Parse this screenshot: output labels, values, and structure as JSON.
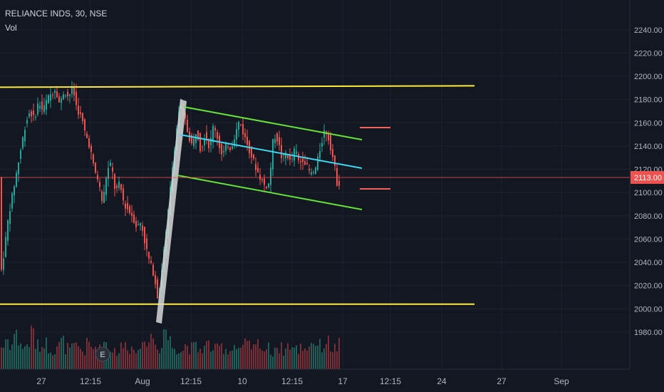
{
  "header": {
    "symbol_line": "RELIANCE INDS, 30, NSE",
    "volume_label": "Vol"
  },
  "colors": {
    "background": "#131722",
    "grid": "#1e222d",
    "axis_text": "#b2b5be",
    "candle_up": "#26a69a",
    "candle_down": "#ef5350",
    "vol_up": "#1e5f5a",
    "vol_down": "#7a2e35",
    "support_resistance": "#ffeb3b",
    "channel": "#66e33a",
    "midline": "#3fd6f0",
    "pole": "#d8d8d8",
    "target_marks": "#f0625a",
    "price_line": "#ef5350"
  },
  "chart_data": {
    "type": "candlestick",
    "symbol": "RELIANCE INDS",
    "interval": "30",
    "exchange": "NSE",
    "y_axis": {
      "range": [
        1964,
        2246
      ],
      "ticks": [
        1980,
        2000,
        2020,
        2040,
        2060,
        2080,
        2100,
        2120,
        2140,
        2160,
        2180,
        2200,
        2220,
        2240
      ],
      "tick_labels": [
        "1980.00",
        "2000.00",
        "2020.00",
        "2040.00",
        "2060.00",
        "2080.00",
        "2100.00",
        "2120.00",
        "2140.00",
        "2160.00",
        "2180.00",
        "2200.00",
        "2220.00",
        "2240.00"
      ]
    },
    "x_axis": {
      "tick_labels": [
        "27",
        "12:15",
        "Aug",
        "12:15",
        "10",
        "12:15",
        "17",
        "12:15",
        "24",
        "27",
        "Sep"
      ]
    },
    "last_price": 2113.0,
    "last_price_label": "2113.00",
    "grid": true,
    "price_path": [
      [
        0,
        2025
      ],
      [
        6,
        2050
      ],
      [
        12,
        2080
      ],
      [
        18,
        2100
      ],
      [
        24,
        2120
      ],
      [
        30,
        2140
      ],
      [
        36,
        2160
      ],
      [
        42,
        2170
      ],
      [
        48,
        2163
      ],
      [
        54,
        2178
      ],
      [
        60,
        2170
      ],
      [
        66,
        2180
      ],
      [
        72,
        2185
      ],
      [
        78,
        2190
      ],
      [
        84,
        2175
      ],
      [
        90,
        2188
      ],
      [
        96,
        2182
      ],
      [
        102,
        2190
      ],
      [
        108,
        2172
      ],
      [
        114,
        2165
      ],
      [
        120,
        2150
      ],
      [
        126,
        2140
      ],
      [
        132,
        2120
      ],
      [
        138,
        2110
      ],
      [
        144,
        2090
      ],
      [
        150,
        2118
      ],
      [
        156,
        2125
      ],
      [
        162,
        2100
      ],
      [
        168,
        2108
      ],
      [
        174,
        2090
      ],
      [
        180,
        2085
      ],
      [
        186,
        2080
      ],
      [
        192,
        2070
      ],
      [
        198,
        2075
      ],
      [
        204,
        2055
      ],
      [
        210,
        2040
      ],
      [
        216,
        2030
      ],
      [
        222,
        2008
      ],
      [
        228,
        2040
      ],
      [
        234,
        2070
      ],
      [
        240,
        2110
      ],
      [
        246,
        2145
      ],
      [
        252,
        2175
      ],
      [
        258,
        2168
      ],
      [
        264,
        2150
      ],
      [
        270,
        2140
      ],
      [
        276,
        2155
      ],
      [
        282,
        2135
      ],
      [
        288,
        2152
      ],
      [
        294,
        2138
      ],
      [
        300,
        2160
      ],
      [
        306,
        2145
      ],
      [
        312,
        2130
      ],
      [
        318,
        2142
      ],
      [
        324,
        2138
      ],
      [
        330,
        2150
      ],
      [
        336,
        2162
      ],
      [
        342,
        2150
      ],
      [
        348,
        2140
      ],
      [
        354,
        2130
      ],
      [
        360,
        2120
      ],
      [
        366,
        2112
      ],
      [
        372,
        2105
      ],
      [
        378,
        2108
      ],
      [
        384,
        2150
      ],
      [
        390,
        2145
      ],
      [
        396,
        2128
      ],
      [
        402,
        2135
      ],
      [
        408,
        2125
      ],
      [
        414,
        2138
      ],
      [
        420,
        2125
      ],
      [
        426,
        2130
      ],
      [
        432,
        2120
      ],
      [
        438,
        2115
      ],
      [
        444,
        2122
      ],
      [
        450,
        2140
      ],
      [
        456,
        2155
      ],
      [
        462,
        2145
      ],
      [
        468,
        2128
      ],
      [
        474,
        2105
      ],
      [
        479,
        2113
      ]
    ],
    "volume_profile": [
      0.35,
      0.6,
      0.4,
      0.8,
      0.5,
      0.3,
      0.45,
      0.9,
      0.4,
      0.35,
      0.5,
      0.3,
      0.25,
      0.4,
      0.55,
      0.3,
      0.25,
      0.35,
      0.3,
      0.2,
      0.45,
      0.3,
      0.35,
      0.25,
      0.5,
      0.3,
      0.25,
      0.2,
      0.35,
      0.4,
      0.3,
      0.25,
      0.45,
      0.3,
      0.55,
      0.7,
      0.4,
      0.3,
      0.95,
      0.6,
      0.35,
      0.3,
      0.25,
      0.4,
      0.3,
      0.35,
      0.25,
      0.3,
      0.45,
      0.3,
      0.25,
      0.35,
      0.3,
      0.2,
      0.4,
      0.3,
      0.25,
      0.45,
      0.35,
      0.3,
      0.5,
      0.25,
      0.3,
      0.2,
      0.35,
      0.3,
      0.25,
      0.4,
      0.3,
      0.25,
      0.35,
      0.3,
      0.45,
      0.5,
      0.4,
      0.35,
      0.55,
      0.3,
      0.3,
      0.45
    ]
  },
  "drawings": {
    "resistance_level": 2190,
    "support_level": 2004,
    "event_marker": "E"
  }
}
